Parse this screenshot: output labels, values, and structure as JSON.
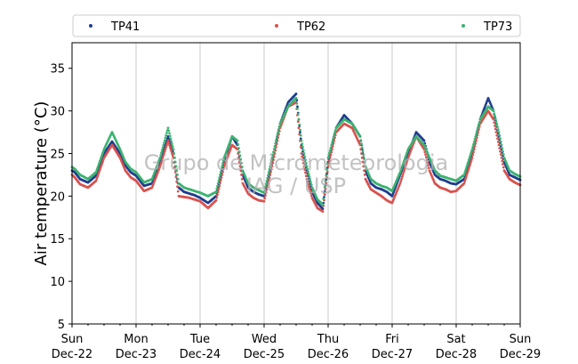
{
  "chart_data": {
    "type": "scatter",
    "title": "",
    "xlabel": "",
    "ylabel": "Air temperature (°C)",
    "ylim": [
      5,
      38
    ],
    "yticks": [
      5,
      10,
      15,
      20,
      25,
      30,
      35
    ],
    "xlim": [
      "2019-12-22 00:00",
      "2019-12-29 00:00"
    ],
    "xticks": [
      {
        "line1": "Sun",
        "line2": "Dec-22"
      },
      {
        "line1": "Mon",
        "line2": "Dec-23"
      },
      {
        "line1": "Tue",
        "line2": "Dec-24"
      },
      {
        "line1": "Wed",
        "line2": "Dec-25"
      },
      {
        "line1": "Thu",
        "line2": "Dec-26"
      },
      {
        "line1": "Fri",
        "line2": "Dec-27"
      },
      {
        "line1": "Sat",
        "line2": "Dec-28"
      },
      {
        "line1": "Sun",
        "line2": "Dec-29"
      }
    ],
    "grid": "vertical",
    "legend_position": "top",
    "watermark": [
      "Grupo de Micrometeorologia",
      "IAG / USP"
    ],
    "series": [
      {
        "name": "TP41",
        "color": "#1f3f8f",
        "x_hours": [
          0,
          1,
          3,
          6,
          9,
          12,
          15,
          18,
          20,
          22,
          24,
          27,
          30,
          33,
          36,
          38,
          40,
          42,
          44,
          46,
          48,
          51,
          54,
          57,
          60,
          62,
          64,
          66,
          68,
          70,
          72,
          75,
          78,
          81,
          84,
          86,
          88,
          90,
          92,
          94,
          96,
          99,
          102,
          105,
          108,
          110,
          112,
          114,
          116,
          118,
          120,
          123,
          126,
          129,
          132,
          134,
          136,
          138,
          140,
          142,
          144,
          147,
          150,
          153,
          156,
          158,
          160,
          162,
          164,
          166,
          168
        ],
        "values": [
          23.0,
          22.8,
          22.0,
          21.6,
          22.4,
          25.0,
          26.4,
          25.0,
          23.6,
          22.8,
          22.4,
          21.2,
          21.5,
          24.0,
          27.0,
          25.0,
          21.0,
          20.5,
          20.3,
          20.1,
          19.8,
          19.2,
          20.0,
          24.0,
          27.0,
          26.0,
          22.5,
          21.0,
          20.5,
          20.2,
          20.0,
          24.0,
          28.5,
          31.0,
          32.0,
          26.0,
          23.0,
          20.5,
          19.2,
          18.5,
          24.0,
          28.0,
          29.5,
          28.5,
          27.0,
          23.0,
          21.5,
          21.0,
          20.8,
          20.5,
          20.0,
          22.5,
          25.0,
          27.5,
          26.5,
          24.0,
          22.5,
          22.0,
          21.8,
          21.5,
          21.4,
          22.0,
          25.0,
          29.0,
          31.5,
          30.0,
          27.0,
          24.0,
          22.5,
          22.2,
          21.9
        ]
      },
      {
        "name": "TP62",
        "color": "#d9534f",
        "x_hours": [
          0,
          1,
          3,
          6,
          9,
          12,
          15,
          18,
          20,
          22,
          24,
          27,
          30,
          33,
          36,
          38,
          40,
          42,
          44,
          46,
          48,
          51,
          54,
          57,
          60,
          62,
          64,
          66,
          68,
          70,
          72,
          75,
          78,
          81,
          84,
          86,
          88,
          90,
          92,
          94,
          96,
          99,
          102,
          105,
          108,
          110,
          112,
          114,
          116,
          118,
          120,
          123,
          126,
          129,
          132,
          134,
          136,
          138,
          140,
          142,
          144,
          147,
          150,
          153,
          156,
          158,
          160,
          162,
          164,
          166,
          168
        ],
        "values": [
          22.5,
          22.2,
          21.4,
          21.0,
          21.8,
          24.5,
          26.0,
          24.5,
          23.0,
          22.2,
          21.8,
          20.6,
          21.0,
          23.5,
          26.5,
          24.5,
          20.0,
          19.9,
          19.8,
          19.6,
          19.4,
          18.6,
          19.5,
          23.5,
          26.0,
          25.5,
          21.5,
          20.3,
          19.8,
          19.5,
          19.4,
          23.5,
          28.0,
          30.5,
          31.0,
          25.0,
          22.0,
          19.8,
          18.6,
          18.2,
          23.5,
          27.5,
          28.5,
          28.0,
          26.0,
          22.0,
          20.8,
          20.4,
          20.0,
          19.5,
          19.2,
          21.5,
          24.5,
          27.0,
          25.5,
          23.0,
          21.5,
          21.0,
          20.8,
          20.5,
          20.6,
          21.5,
          24.5,
          28.5,
          30.0,
          29.0,
          26.0,
          23.0,
          22.0,
          21.6,
          21.3
        ]
      },
      {
        "name": "TP73",
        "color": "#3cb371",
        "x_hours": [
          0,
          1,
          3,
          6,
          9,
          12,
          15,
          18,
          20,
          22,
          24,
          27,
          30,
          33,
          36,
          38,
          40,
          42,
          44,
          46,
          48,
          51,
          54,
          57,
          60,
          62,
          64,
          66,
          68,
          70,
          72,
          75,
          78,
          81,
          84,
          86,
          88,
          90,
          92,
          94,
          96,
          99,
          102,
          105,
          108,
          110,
          112,
          114,
          116,
          118,
          120,
          123,
          126,
          129,
          132,
          134,
          136,
          138,
          140,
          142,
          144,
          147,
          150,
          153,
          156,
          158,
          160,
          162,
          164,
          166,
          168
        ],
        "values": [
          23.4,
          23.2,
          22.5,
          22.0,
          22.8,
          25.5,
          27.5,
          25.5,
          24.0,
          23.2,
          22.8,
          21.6,
          22.0,
          24.5,
          28.0,
          25.5,
          21.5,
          21.0,
          20.8,
          20.6,
          20.4,
          20.0,
          20.5,
          24.5,
          27.0,
          26.5,
          23.0,
          21.5,
          21.0,
          20.7,
          20.4,
          24.5,
          28.5,
          30.5,
          31.5,
          26.5,
          23.5,
          21.0,
          19.6,
          19.0,
          24.5,
          28.0,
          29.0,
          28.5,
          27.0,
          23.5,
          22.0,
          21.5,
          21.2,
          21.0,
          20.6,
          22.8,
          25.5,
          27.0,
          26.0,
          24.5,
          23.0,
          22.4,
          22.2,
          22.0,
          21.8,
          22.5,
          25.5,
          29.0,
          30.5,
          30.0,
          27.5,
          24.5,
          23.0,
          22.6,
          22.3
        ]
      }
    ]
  }
}
